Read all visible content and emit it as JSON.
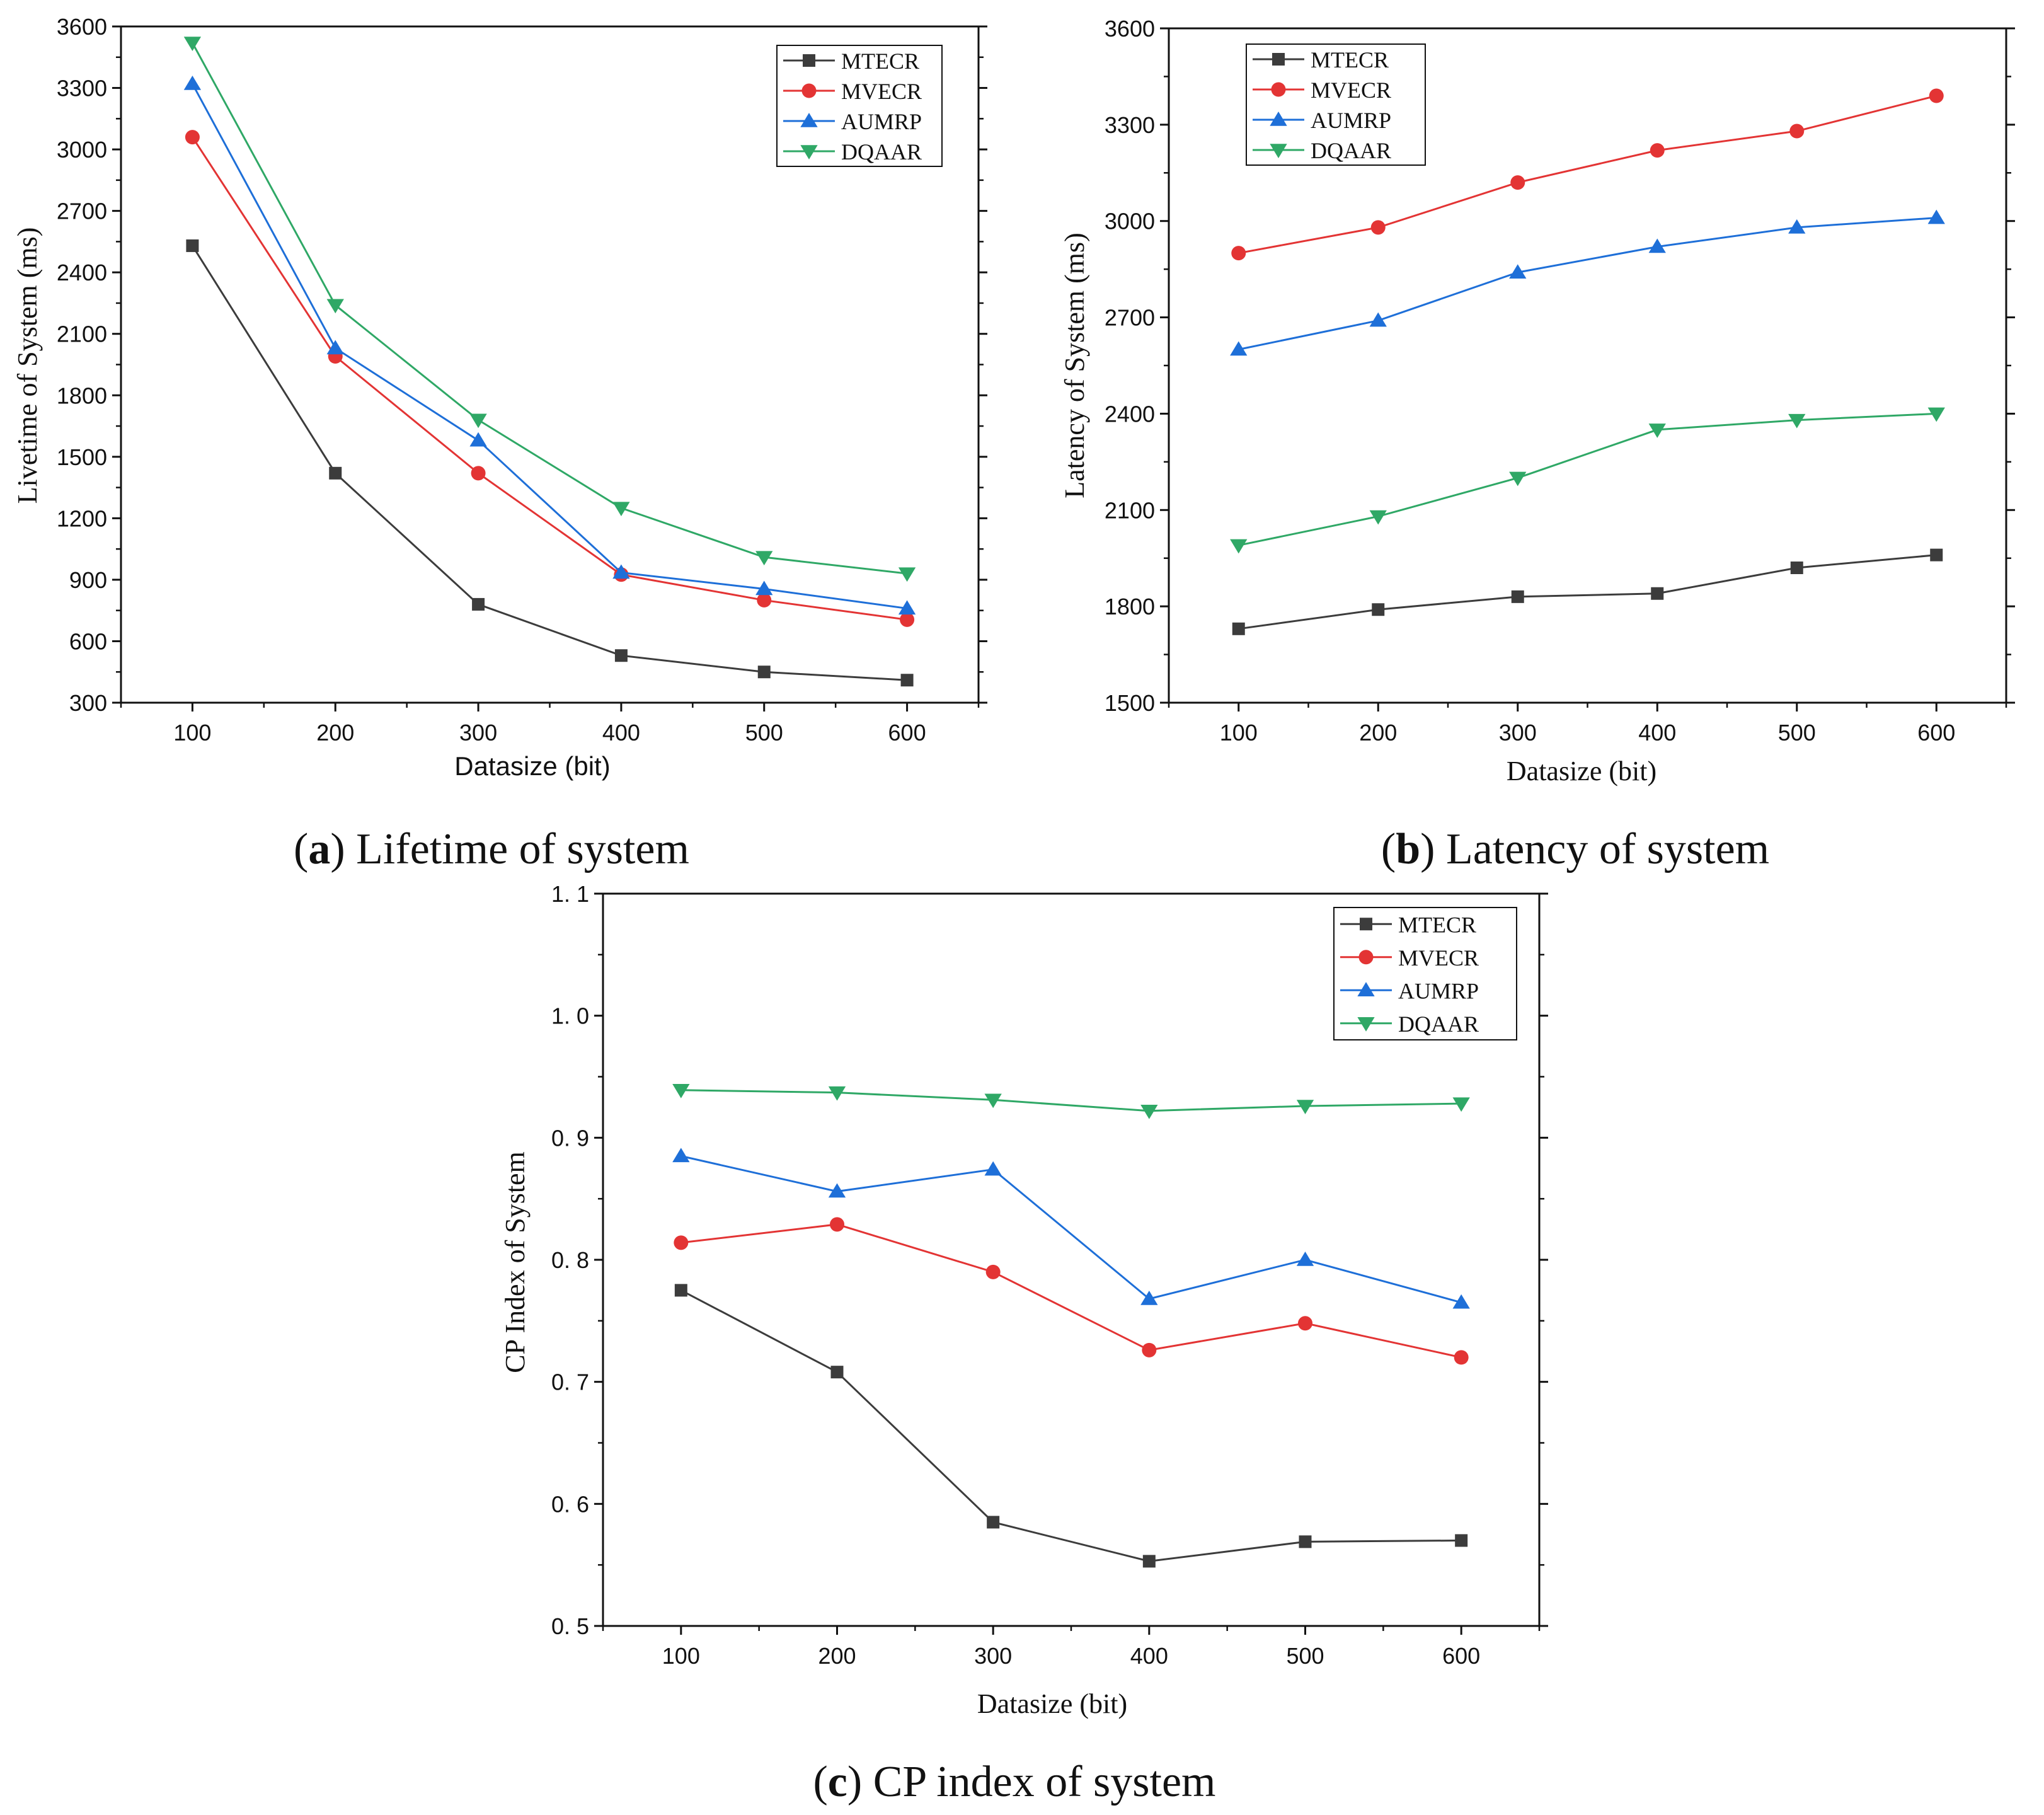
{
  "chart_data": [
    {
      "id": "a",
      "type": "line",
      "caption_letter": "a",
      "caption_text": "Lifetime of system",
      "title": "",
      "xlabel": "Datasize (bit)",
      "ylabel": "Livetime  of  System (ms)",
      "x": [
        100,
        200,
        300,
        400,
        500,
        600
      ],
      "x_ticks": [
        "100",
        "200",
        "300",
        "400",
        "500",
        "600"
      ],
      "xlim": [
        50,
        650
      ],
      "ylim": [
        300,
        3600
      ],
      "y_ticks": [
        "300",
        "600",
        "900",
        "1200",
        "1500",
        "1800",
        "2100",
        "2400",
        "2700",
        "3000",
        "3300",
        "3600"
      ],
      "legend_position": "top-right",
      "series": [
        {
          "name": "MTECR",
          "values": [
            2530,
            1420,
            780,
            530,
            450,
            410
          ]
        },
        {
          "name": "MVECR",
          "values": [
            3060,
            1990,
            1420,
            925,
            800,
            705
          ]
        },
        {
          "name": "AUMRP",
          "values": [
            3320,
            2030,
            1580,
            935,
            855,
            760
          ]
        },
        {
          "name": "DQAAR",
          "values": [
            3520,
            2240,
            1680,
            1250,
            1010,
            930
          ]
        }
      ]
    },
    {
      "id": "b",
      "type": "line",
      "caption_letter": "b",
      "caption_text": "Latency of system",
      "title": "",
      "xlabel": "Datasize (bit)",
      "ylabel": "Latency  of  System (ms)",
      "x": [
        100,
        200,
        300,
        400,
        500,
        600
      ],
      "x_ticks": [
        "100",
        "200",
        "300",
        "400",
        "500",
        "600"
      ],
      "xlim": [
        50,
        650
      ],
      "ylim": [
        1500,
        3600
      ],
      "y_ticks": [
        "1500",
        "1800",
        "2100",
        "2400",
        "2700",
        "3000",
        "3300",
        "3600"
      ],
      "legend_position": "top-left",
      "series": [
        {
          "name": "MTECR",
          "values": [
            1730,
            1790,
            1830,
            1840,
            1920,
            1960
          ]
        },
        {
          "name": "MVECR",
          "values": [
            2900,
            2980,
            3120,
            3220,
            3280,
            3390
          ]
        },
        {
          "name": "AUMRP",
          "values": [
            2600,
            2690,
            2840,
            2920,
            2980,
            3010
          ]
        },
        {
          "name": "DQAAR",
          "values": [
            1990,
            2080,
            2200,
            2350,
            2380,
            2400
          ]
        }
      ]
    },
    {
      "id": "c",
      "type": "line",
      "caption_letter": "c",
      "caption_text": "CP index of system",
      "title": "",
      "xlabel": "Datasize (bit)",
      "ylabel": "CP  Index  of  System",
      "x": [
        100,
        200,
        300,
        400,
        500,
        600
      ],
      "x_ticks": [
        "100",
        "200",
        "300",
        "400",
        "500",
        "600"
      ],
      "xlim": [
        50,
        650
      ],
      "ylim": [
        0.5,
        1.1
      ],
      "y_ticks": [
        "0. 5",
        "0. 6",
        "0. 7",
        "0. 8",
        "0. 9",
        "1. 0",
        "1. 1"
      ],
      "legend_position": "top-right",
      "series": [
        {
          "name": "MTECR",
          "values": [
            0.775,
            0.708,
            0.585,
            0.553,
            0.569,
            0.57
          ]
        },
        {
          "name": "MVECR",
          "values": [
            0.814,
            0.829,
            0.79,
            0.726,
            0.748,
            0.72
          ]
        },
        {
          "name": "AUMRP",
          "values": [
            0.885,
            0.856,
            0.874,
            0.768,
            0.8,
            0.765
          ]
        },
        {
          "name": "DQAAR",
          "values": [
            0.939,
            0.937,
            0.931,
            0.922,
            0.926,
            0.928
          ]
        }
      ]
    }
  ],
  "series_style": {
    "MTECR": {
      "color": "#3c3c3c",
      "marker": "square"
    },
    "MVECR": {
      "color": "#e33434",
      "marker": "circle"
    },
    "AUMRP": {
      "color": "#1e6fd8",
      "marker": "triangle-up"
    },
    "DQAAR": {
      "color": "#2fa866",
      "marker": "triangle-down"
    }
  }
}
